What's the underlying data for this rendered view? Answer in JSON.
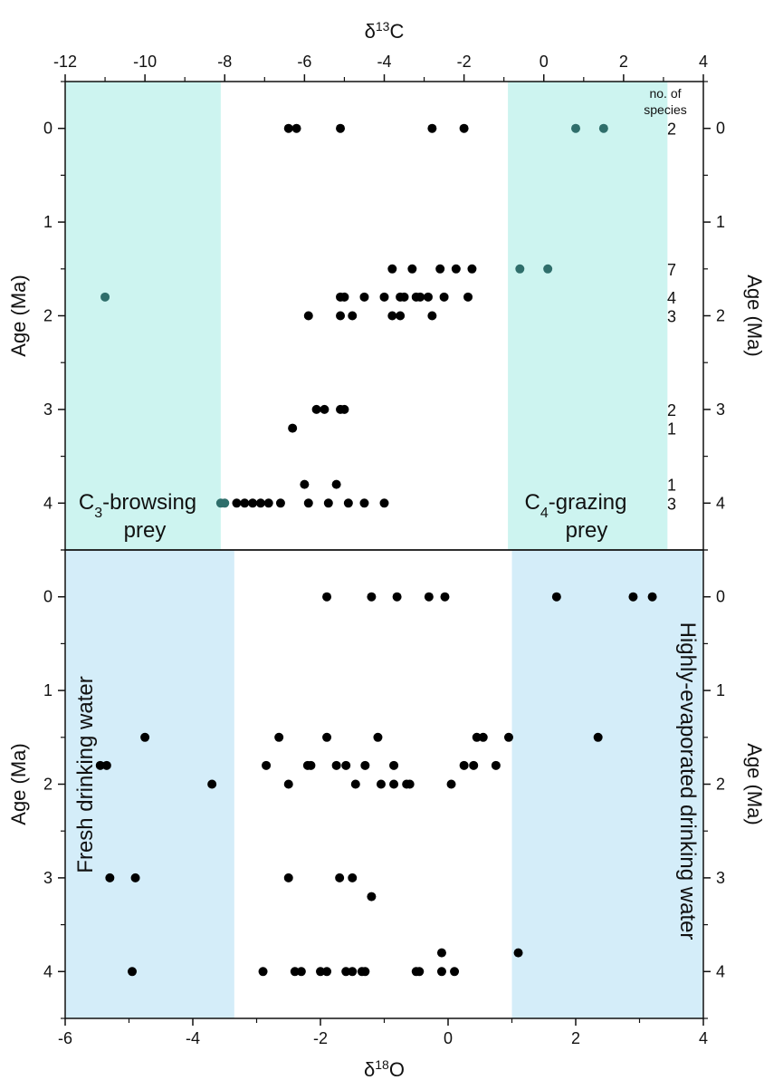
{
  "colors": {
    "c_band": "#cdf4f0",
    "o_band": "#d4edf9",
    "dot": "#000000",
    "dot_teal": "#2f6e6b",
    "frame": "#111111"
  },
  "chart_data": [
    {
      "type": "scatter",
      "panel": "carbon",
      "x_title_main": "δ",
      "x_title_sup": "13",
      "x_title_tail": "C",
      "xlim": [
        -12,
        4
      ],
      "ylim": [
        4.5,
        -0.5
      ],
      "x_ticks": [
        "-12",
        "-10",
        "-8",
        "-6",
        "-4",
        "-2",
        "0",
        "2",
        "4"
      ],
      "y_ticks": [
        "0",
        "1",
        "2",
        "3",
        "4"
      ],
      "ylabel_left": "Age (Ma)",
      "ylabel_right": "Age (Ma)",
      "grid": false,
      "header_line1": "no. of",
      "header_line2": "species",
      "bands": [
        {
          "x0": -12,
          "x1": -8.1,
          "label_main": "C",
          "label_sub": "3",
          "label_tail": "-browsing",
          "label_line2": "prey",
          "position": "bottom-left"
        },
        {
          "x0": -0.9,
          "x1": 3.1,
          "label_main": "C",
          "label_sub": "4",
          "label_tail": "-grazing",
          "label_line2": "prey",
          "position": "bottom-right"
        }
      ],
      "counts": [
        {
          "age": 0,
          "value": "2"
        },
        {
          "age": 1.5,
          "value": "7"
        },
        {
          "age": 1.8,
          "value": "4"
        },
        {
          "age": 2.0,
          "value": "3"
        },
        {
          "age": 3.0,
          "value": "2"
        },
        {
          "age": 3.2,
          "value": "1"
        },
        {
          "age": 3.8,
          "value": "1"
        },
        {
          "age": 4.0,
          "value": "3"
        }
      ],
      "points_black": [
        {
          "x": -6.4,
          "y": 0
        },
        {
          "x": -6.2,
          "y": 0
        },
        {
          "x": -5.1,
          "y": 0
        },
        {
          "x": -2.8,
          "y": 0
        },
        {
          "x": -2.0,
          "y": 0
        },
        {
          "x": -3.8,
          "y": 1.5
        },
        {
          "x": -3.3,
          "y": 1.5
        },
        {
          "x": -2.6,
          "y": 1.5
        },
        {
          "x": -2.2,
          "y": 1.5
        },
        {
          "x": -1.8,
          "y": 1.5
        },
        {
          "x": -5.1,
          "y": 1.8
        },
        {
          "x": -5.0,
          "y": 1.8
        },
        {
          "x": -4.5,
          "y": 1.8
        },
        {
          "x": -4.0,
          "y": 1.8
        },
        {
          "x": -3.6,
          "y": 1.8
        },
        {
          "x": -3.5,
          "y": 1.8
        },
        {
          "x": -3.2,
          "y": 1.8
        },
        {
          "x": -3.1,
          "y": 1.8
        },
        {
          "x": -2.9,
          "y": 1.8
        },
        {
          "x": -2.5,
          "y": 1.8
        },
        {
          "x": -1.9,
          "y": 1.8
        },
        {
          "x": -5.9,
          "y": 2.0
        },
        {
          "x": -5.1,
          "y": 2.0
        },
        {
          "x": -4.8,
          "y": 2.0
        },
        {
          "x": -3.8,
          "y": 2.0
        },
        {
          "x": -3.6,
          "y": 2.0
        },
        {
          "x": -2.8,
          "y": 2.0
        },
        {
          "x": -5.7,
          "y": 3.0
        },
        {
          "x": -5.5,
          "y": 3.0
        },
        {
          "x": -5.1,
          "y": 3.0
        },
        {
          "x": -5.0,
          "y": 3.0
        },
        {
          "x": -6.3,
          "y": 3.2
        },
        {
          "x": -6.0,
          "y": 3.8
        },
        {
          "x": -5.2,
          "y": 3.8
        },
        {
          "x": -7.7,
          "y": 4.0
        },
        {
          "x": -7.5,
          "y": 4.0
        },
        {
          "x": -7.3,
          "y": 4.0
        },
        {
          "x": -7.1,
          "y": 4.0
        },
        {
          "x": -6.9,
          "y": 4.0
        },
        {
          "x": -6.6,
          "y": 4.0
        },
        {
          "x": -5.9,
          "y": 4.0
        },
        {
          "x": -5.4,
          "y": 4.0
        },
        {
          "x": -4.9,
          "y": 4.0
        },
        {
          "x": -4.5,
          "y": 4.0
        },
        {
          "x": -4.0,
          "y": 4.0
        }
      ],
      "points_teal": [
        {
          "x": 0.8,
          "y": 0
        },
        {
          "x": 1.5,
          "y": 0
        },
        {
          "x": -0.6,
          "y": 1.5
        },
        {
          "x": 0.1,
          "y": 1.5
        },
        {
          "x": -11.0,
          "y": 1.8
        },
        {
          "x": -8.1,
          "y": 4.0
        },
        {
          "x": -8.0,
          "y": 4.0
        }
      ]
    },
    {
      "type": "scatter",
      "panel": "oxygen",
      "x_title_main": "δ",
      "x_title_sup": "18",
      "x_title_tail": "O",
      "xlim": [
        -6,
        4
      ],
      "ylim": [
        4.5,
        -0.5
      ],
      "x_ticks": [
        "-6",
        "-4",
        "-2",
        "0",
        "2",
        "4"
      ],
      "y_ticks": [
        "0",
        "1",
        "2",
        "3",
        "4"
      ],
      "ylabel_left": "Age (Ma)",
      "ylabel_right": "Age (Ma)",
      "grid": false,
      "bands": [
        {
          "x0": -6,
          "x1": -3.35,
          "label": "Fresh drinking water",
          "position": "left-vertical"
        },
        {
          "x0": 1.0,
          "x1": 4,
          "label": "Highly-evaporated drinking water",
          "position": "right-vertical"
        }
      ],
      "points_black": [
        {
          "x": -1.9,
          "y": 0
        },
        {
          "x": -1.2,
          "y": 0
        },
        {
          "x": -0.8,
          "y": 0
        },
        {
          "x": -0.3,
          "y": 0
        },
        {
          "x": -0.05,
          "y": 0
        },
        {
          "x": 1.7,
          "y": 0
        },
        {
          "x": 2.9,
          "y": 0
        },
        {
          "x": 3.2,
          "y": 0
        },
        {
          "x": -4.75,
          "y": 1.5
        },
        {
          "x": -2.65,
          "y": 1.5
        },
        {
          "x": -1.9,
          "y": 1.5
        },
        {
          "x": -1.1,
          "y": 1.5
        },
        {
          "x": 0.45,
          "y": 1.5
        },
        {
          "x": 0.55,
          "y": 1.5
        },
        {
          "x": 0.95,
          "y": 1.5
        },
        {
          "x": 2.35,
          "y": 1.5
        },
        {
          "x": -5.45,
          "y": 1.8
        },
        {
          "x": -5.35,
          "y": 1.8
        },
        {
          "x": -2.85,
          "y": 1.8
        },
        {
          "x": -2.2,
          "y": 1.8
        },
        {
          "x": -2.15,
          "y": 1.8
        },
        {
          "x": -1.75,
          "y": 1.8
        },
        {
          "x": -1.6,
          "y": 1.8
        },
        {
          "x": -1.3,
          "y": 1.8
        },
        {
          "x": -0.85,
          "y": 1.8
        },
        {
          "x": 0.25,
          "y": 1.8
        },
        {
          "x": 0.4,
          "y": 1.8
        },
        {
          "x": 0.75,
          "y": 1.8
        },
        {
          "x": -3.7,
          "y": 2.0
        },
        {
          "x": -2.5,
          "y": 2.0
        },
        {
          "x": -1.45,
          "y": 2.0
        },
        {
          "x": -1.05,
          "y": 2.0
        },
        {
          "x": -0.85,
          "y": 2.0
        },
        {
          "x": -0.65,
          "y": 2.0
        },
        {
          "x": -0.6,
          "y": 2.0
        },
        {
          "x": 0.05,
          "y": 2.0
        },
        {
          "x": -5.3,
          "y": 3.0
        },
        {
          "x": -4.9,
          "y": 3.0
        },
        {
          "x": -2.5,
          "y": 3.0
        },
        {
          "x": -1.7,
          "y": 3.0
        },
        {
          "x": -1.5,
          "y": 3.0
        },
        {
          "x": -1.2,
          "y": 3.2
        },
        {
          "x": -0.1,
          "y": 3.8
        },
        {
          "x": 1.1,
          "y": 3.8
        },
        {
          "x": -4.95,
          "y": 4.0
        },
        {
          "x": -2.9,
          "y": 4.0
        },
        {
          "x": -2.4,
          "y": 4.0
        },
        {
          "x": -2.3,
          "y": 4.0
        },
        {
          "x": -2.0,
          "y": 4.0
        },
        {
          "x": -1.9,
          "y": 4.0
        },
        {
          "x": -1.6,
          "y": 4.0
        },
        {
          "x": -1.5,
          "y": 4.0
        },
        {
          "x": -1.35,
          "y": 4.0
        },
        {
          "x": -1.3,
          "y": 4.0
        },
        {
          "x": -0.5,
          "y": 4.0
        },
        {
          "x": -0.45,
          "y": 4.0
        },
        {
          "x": -0.1,
          "y": 4.0
        },
        {
          "x": 0.1,
          "y": 4.0
        }
      ]
    }
  ]
}
